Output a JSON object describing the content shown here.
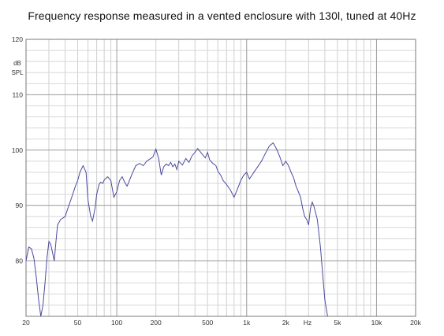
{
  "chart_data": {
    "type": "line",
    "title": "Frequency response measured in a vented enclosure with 130l, tuned at 40Hz",
    "y_unit_top": "dB",
    "y_unit_bottom": "SPL",
    "x_unit": "Hz",
    "x_scale": "log",
    "xlim": [
      20,
      20000
    ],
    "ylim": [
      70,
      120
    ],
    "grid": true,
    "y_ticks": [
      {
        "value": 120,
        "label": "120"
      },
      {
        "value": 110,
        "label": "110"
      },
      {
        "value": 100,
        "label": "100"
      },
      {
        "value": 90,
        "label": "90"
      },
      {
        "value": 80,
        "label": "80"
      }
    ],
    "x_ticks": [
      {
        "value": 20,
        "label": "20"
      },
      {
        "value": 50,
        "label": "50"
      },
      {
        "value": 100,
        "label": "100"
      },
      {
        "value": 200,
        "label": "200"
      },
      {
        "value": 500,
        "label": "500"
      },
      {
        "value": 1000,
        "label": "1k"
      },
      {
        "value": 2000,
        "label": "2k"
      },
      {
        "value": 5000,
        "label": "5k"
      },
      {
        "value": 10000,
        "label": "10k"
      },
      {
        "value": 20000,
        "label": "20k"
      }
    ],
    "series": [
      {
        "color": "#4a4aa0",
        "x": [
          20,
          21,
          22,
          23,
          24,
          25,
          26,
          27,
          28,
          29,
          30,
          31,
          32,
          33,
          34,
          35,
          37,
          40,
          42,
          45,
          48,
          50,
          52,
          55,
          58,
          60,
          63,
          65,
          68,
          70,
          73,
          75,
          78,
          80,
          85,
          90,
          95,
          100,
          105,
          110,
          115,
          120,
          125,
          130,
          140,
          150,
          160,
          170,
          180,
          190,
          200,
          210,
          220,
          230,
          240,
          250,
          260,
          270,
          280,
          290,
          300,
          320,
          340,
          360,
          380,
          400,
          420,
          450,
          480,
          500,
          520,
          550,
          580,
          600,
          630,
          660,
          700,
          750,
          800,
          850,
          900,
          950,
          1000,
          1050,
          1100,
          1200,
          1300,
          1400,
          1500,
          1600,
          1700,
          1800,
          1900,
          2000,
          2100,
          2200,
          2300,
          2400,
          2500,
          2600,
          2700,
          2800,
          2900,
          3000,
          3100,
          3200,
          3300,
          3500,
          3700,
          3900,
          4000,
          4200
        ],
        "y": [
          80,
          82.5,
          82.2,
          80.5,
          77,
          73,
          70,
          72,
          76,
          80.5,
          83.5,
          83,
          81.5,
          80,
          83.5,
          86.5,
          87.5,
          88,
          89.5,
          91.5,
          93.5,
          94.5,
          96,
          97.2,
          96,
          91,
          88,
          87.2,
          89.5,
          92,
          93.8,
          94.2,
          94,
          94.6,
          95.2,
          94.5,
          91.5,
          92.5,
          94.5,
          95.2,
          94.2,
          93.5,
          94.5,
          95.5,
          97.2,
          97.6,
          97.2,
          98,
          98.4,
          98.8,
          100.2,
          98.5,
          95.5,
          97,
          97.5,
          97.2,
          97.8,
          97,
          97.5,
          96.5,
          98,
          97.3,
          98.5,
          97.8,
          99,
          99.6,
          100.3,
          99.4,
          98.6,
          99.6,
          98.2,
          97.6,
          97.2,
          96.2,
          95.5,
          94.5,
          93.8,
          92.8,
          91.5,
          93,
          94.5,
          95.5,
          96,
          94.8,
          95.5,
          96.8,
          98,
          99.5,
          100.8,
          101.3,
          100.2,
          98.8,
          97.2,
          98,
          97.2,
          96,
          95,
          93.5,
          92.5,
          91.5,
          89.5,
          88,
          87.5,
          86.5,
          89.5,
          90.6,
          89.8,
          87.5,
          82.5,
          76,
          73,
          70
        ]
      }
    ]
  }
}
